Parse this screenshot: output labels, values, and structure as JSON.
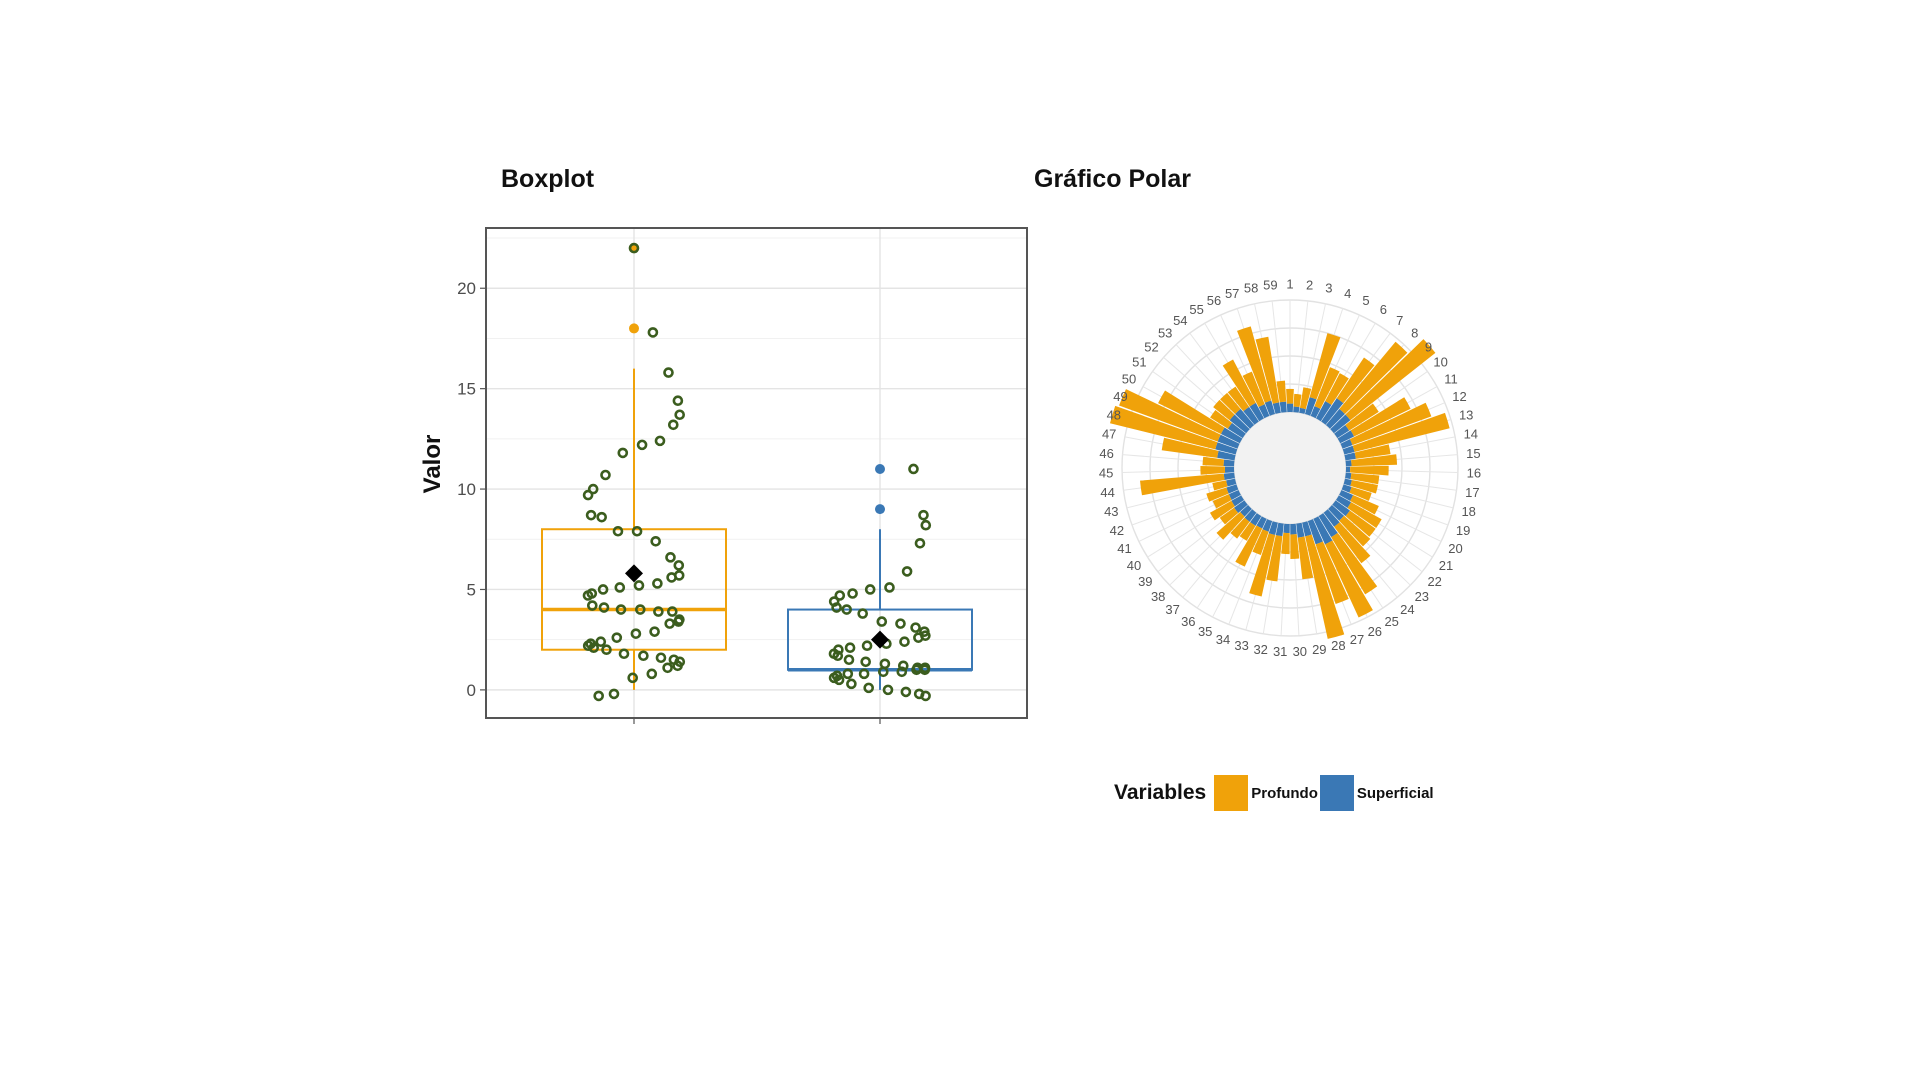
{
  "colors": {
    "profundo": "#f0a20a",
    "superficial": "#3a78b5",
    "point_stroke": "#3b5d1e",
    "mean_marker": "#000000"
  },
  "chart_data": [
    {
      "type": "boxplot",
      "title": "Boxplot",
      "ylabel": "Valor",
      "xlabel": "",
      "ylim": [
        -1.4,
        23
      ],
      "yticks": [
        0,
        5,
        10,
        15,
        20
      ],
      "groups": [
        {
          "name": "Profundo",
          "color_key": "profundo",
          "q1": 2,
          "median": 4,
          "q3": 8,
          "whisker_low": 0,
          "whisker_high": 16,
          "mean": 5.8,
          "outliers": [
            22,
            18
          ],
          "points": [
            22,
            17.8,
            15.8,
            14.4,
            13.7,
            13.2,
            12.4,
            12.2,
            11.8,
            10.7,
            10,
            9.7,
            8.7,
            8.6,
            7.9,
            7.9,
            7.4,
            6.6,
            6.2,
            5.7,
            5.6,
            5.3,
            5.2,
            5.1,
            5,
            4.8,
            4.7,
            4.2,
            4.1,
            4,
            4,
            3.9,
            3.9,
            3.5,
            3.4,
            3.3,
            2.9,
            2.8,
            2.6,
            2.4,
            2.3,
            2.2,
            2.1,
            2,
            1.8,
            1.7,
            1.6,
            1.5,
            1.4,
            1.2,
            1.1,
            0.8,
            0.6,
            -0.2,
            -0.3
          ]
        },
        {
          "name": "Superficial",
          "color_key": "superficial",
          "q1": 1,
          "median": 1,
          "q3": 4,
          "whisker_low": 0,
          "whisker_high": 8,
          "mean": 2.5,
          "outliers": [
            11,
            9
          ],
          "points": [
            11,
            8.7,
            8.2,
            7.3,
            5.9,
            5.1,
            5,
            4.8,
            4.7,
            4.4,
            4.1,
            4,
            3.8,
            3.4,
            3.3,
            3.1,
            2.9,
            2.7,
            2.6,
            2.4,
            2.3,
            2.2,
            2.1,
            2,
            1.8,
            1.7,
            1.5,
            1.4,
            1.3,
            1.2,
            1.1,
            1.1,
            1,
            1,
            0.9,
            0.9,
            0.8,
            0.8,
            0.7,
            0.6,
            0.5,
            0.3,
            0.1,
            0,
            -0.1,
            -0.2,
            -0.3
          ]
        }
      ]
    },
    {
      "type": "polar_bar",
      "title": "Gráfico Polar",
      "categories": [
        "1",
        "2",
        "3",
        "4",
        "5",
        "6",
        "7",
        "8",
        "9",
        "10",
        "11",
        "12",
        "13",
        "14",
        "15",
        "16",
        "17",
        "18",
        "19",
        "20",
        "21",
        "22",
        "23",
        "24",
        "25",
        "26",
        "27",
        "28",
        "29",
        "30",
        "31",
        "32",
        "33",
        "34",
        "35",
        "36",
        "37",
        "38",
        "39",
        "40",
        "41",
        "42",
        "43",
        "44",
        "45",
        "46",
        "47",
        "48",
        "49",
        "50",
        "51",
        "52",
        "53",
        "54",
        "55",
        "56",
        "57",
        "58",
        "59"
      ],
      "r_max": 16,
      "series": [
        {
          "name": "Profundo",
          "values": [
            2.1,
            1.8,
            3.0,
            9.5,
            6.0,
            4.5,
            7.0,
            12.5,
            15.5,
            5.0,
            9.0,
            12.0,
            14.0,
            5.0,
            6.5,
            5.5,
            4.0,
            3.8,
            3.0,
            4.0,
            5.0,
            4.5,
            5.0,
            6.5,
            9.5,
            11.5,
            9.0,
            15.0,
            6.0,
            3.5,
            3.0,
            6.5,
            9.0,
            3.5,
            6.0,
            2.5,
            3.0,
            4.5,
            2.5,
            3.5,
            2.5,
            3.0,
            2.0,
            12.0,
            3.5,
            3.0,
            8.0,
            15.5,
            15.0,
            10.0,
            3.0,
            3.0,
            3.0,
            3.5,
            7.0,
            5.0,
            11.0,
            9.5,
            3.0
          ]
        },
        {
          "name": "Superficial",
          "values": [
            1.2,
            0.8,
            0.7,
            2.5,
            1.5,
            2.8,
            4.0,
            3.0,
            3.0,
            2.0,
            2.2,
            1.5,
            1.5,
            1.5,
            0.8,
            0.6,
            0.8,
            1.0,
            1.2,
            1.8,
            2.0,
            2.5,
            2.3,
            2.5,
            3.5,
            4.0,
            3.5,
            2.0,
            2.0,
            1.5,
            1.3,
            1.8,
            1.8,
            1.6,
            1.5,
            1.6,
            1.6,
            1.5,
            1.8,
            1.6,
            1.5,
            1.5,
            1.3,
            1.5,
            1.3,
            1.5,
            2.5,
            3.0,
            3.0,
            3.0,
            2.5,
            3.0,
            3.0,
            2.5,
            2.5,
            1.8,
            2.0,
            1.5,
            1.5
          ]
        }
      ],
      "legend": {
        "title": "Variables",
        "labels": [
          "Profundo",
          "Superficial"
        ],
        "position": "bottom"
      }
    }
  ]
}
